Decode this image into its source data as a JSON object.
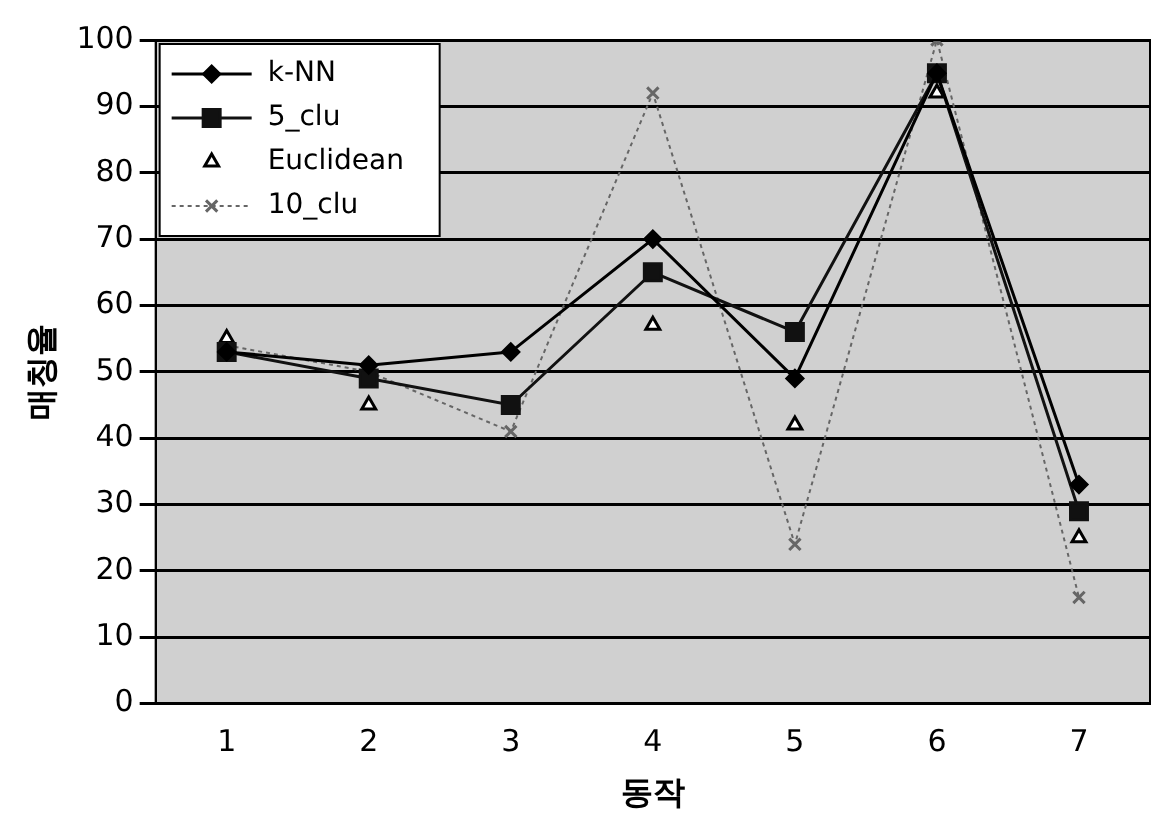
{
  "chart_data": {
    "type": "line",
    "xlabel": "동작",
    "ylabel": "매칭율",
    "categories": [
      "1",
      "2",
      "3",
      "4",
      "5",
      "6",
      "7"
    ],
    "series": [
      {
        "name": "k-NN",
        "color": "#000000",
        "marker": "diamond",
        "line_style": "solid",
        "values": [
          53,
          51,
          53,
          70,
          49,
          95,
          33
        ]
      },
      {
        "name": "5_clu",
        "color": "#111111",
        "marker": "square",
        "line_style": "solid",
        "values": [
          53,
          49,
          45,
          65,
          56,
          95,
          29
        ]
      },
      {
        "name": "Euclidean",
        "type": "scatter",
        "color": "#000000",
        "marker": "triangle",
        "values": [
          55,
          45,
          null,
          57,
          42,
          92,
          25
        ]
      },
      {
        "name": "10_clu",
        "color": "#666666",
        "marker": "cross",
        "line_style": "dotted",
        "values": [
          54,
          50,
          41,
          92,
          24,
          100,
          16
        ]
      }
    ],
    "ylim": [
      0,
      100
    ],
    "yticks": [
      0,
      10,
      20,
      30,
      40,
      50,
      60,
      70,
      80,
      90,
      100
    ],
    "grid": "y",
    "legend": "top left"
  }
}
